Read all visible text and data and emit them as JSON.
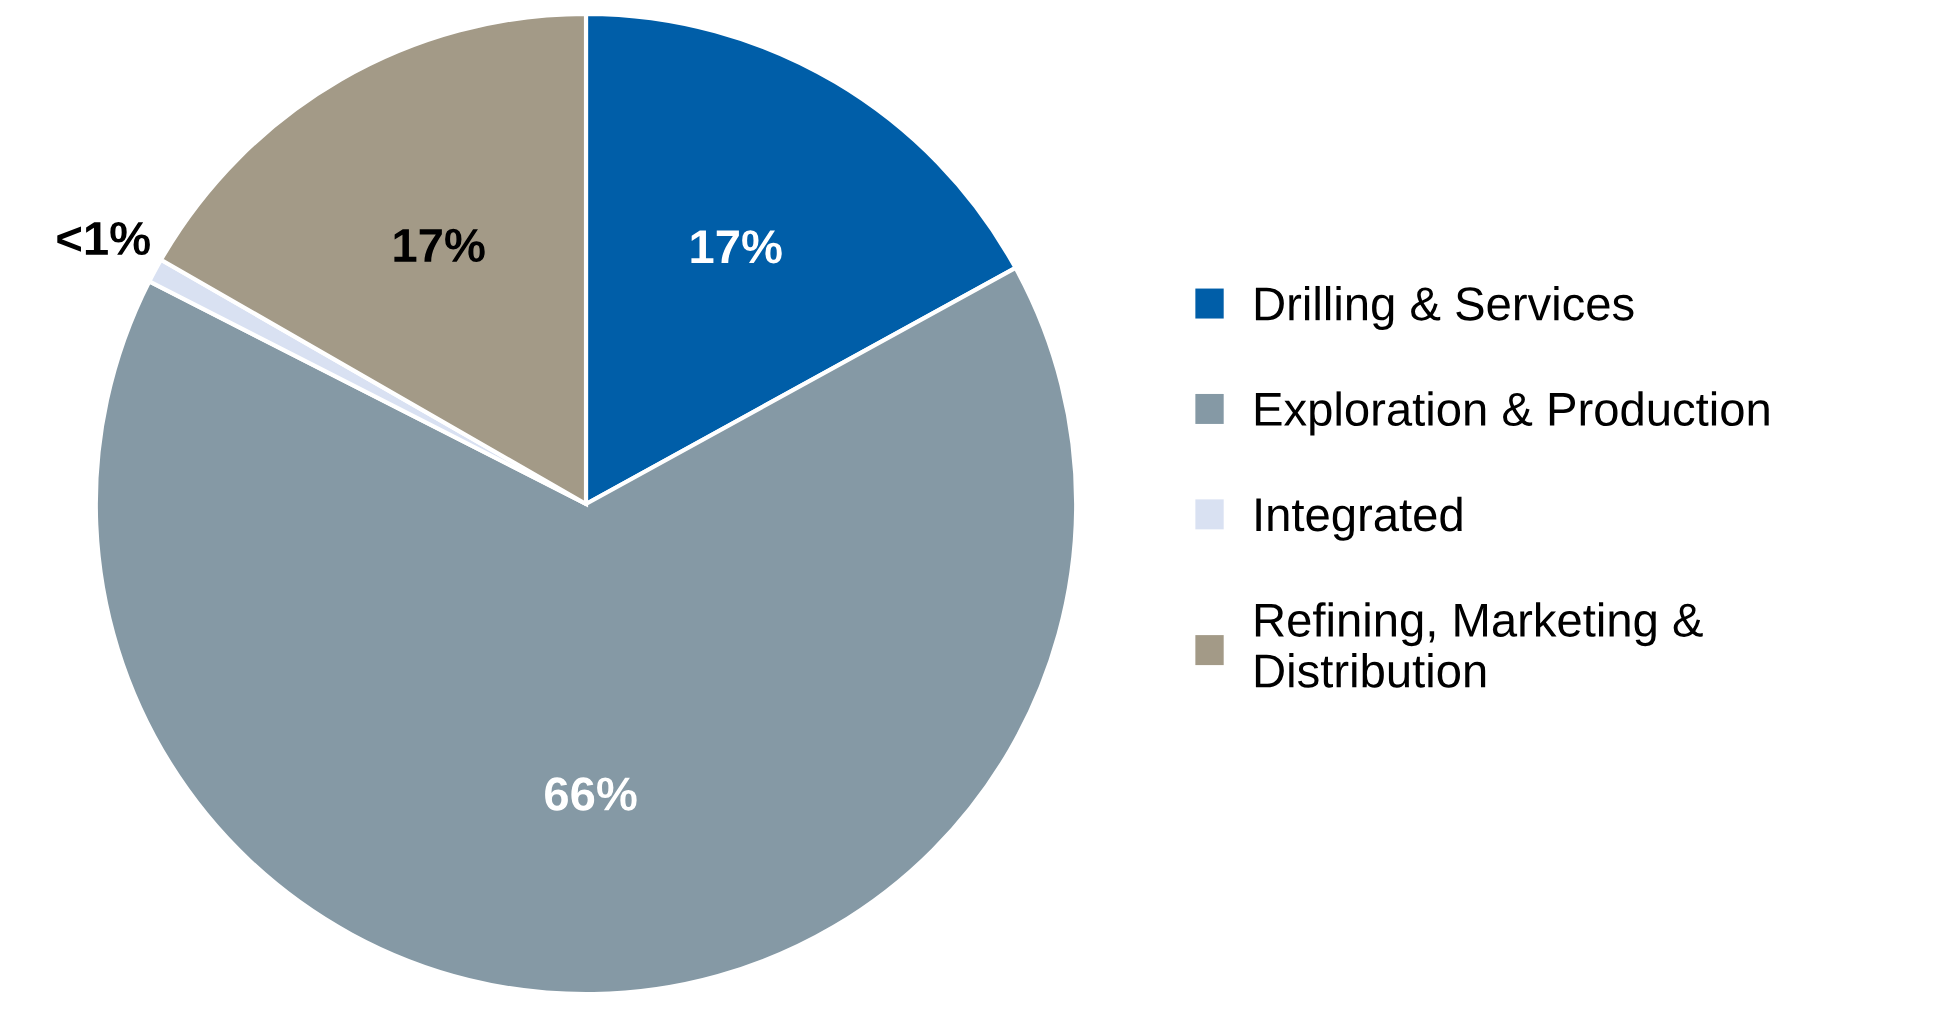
{
  "chart_data": {
    "type": "pie",
    "categories": [
      "Drilling & Services",
      "Exploration & Production",
      "Integrated",
      "Refining, Marketing &\nDistribution"
    ],
    "values": [
      17,
      65.5,
      0.8,
      16.7
    ],
    "colors": [
      "#005ea8",
      "#8599a5",
      "#d9e1f2",
      "#a39a87"
    ],
    "value_labels": [
      "17%",
      "66%",
      "<1%",
      "17%"
    ],
    "legend": "right"
  }
}
